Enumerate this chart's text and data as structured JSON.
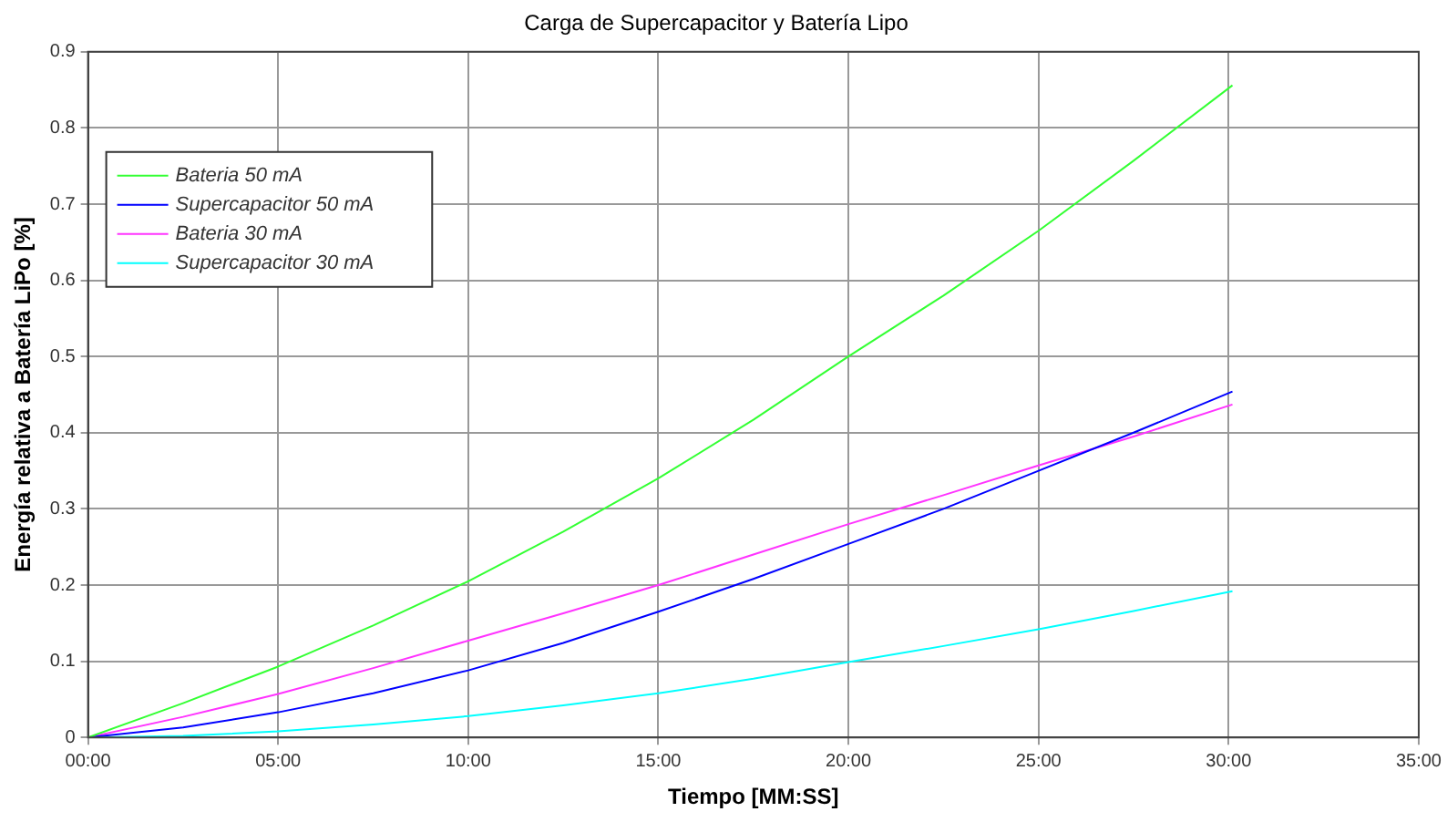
{
  "chart_data": {
    "type": "line",
    "title": "Carga de Supercapacitor y Batería Lipo",
    "xlabel": "Tiempo [MM:SS]",
    "ylabel": "Energía relativa a Batería LiPo [%]",
    "x": [
      0,
      2.5,
      5,
      7.5,
      10,
      12.5,
      15,
      17.5,
      20,
      22.5,
      25,
      27.5,
      30.1
    ],
    "series": [
      {
        "name": "Bateria 50 mA",
        "color": "#33ff33",
        "values": [
          0,
          0.045,
          0.093,
          0.147,
          0.205,
          0.27,
          0.34,
          0.417,
          0.5,
          0.58,
          0.665,
          0.757,
          0.856
        ]
      },
      {
        "name": "Supercapacitor 50 mA",
        "color": "#0000ff",
        "values": [
          0,
          0.013,
          0.033,
          0.058,
          0.088,
          0.124,
          0.165,
          0.208,
          0.254,
          0.3,
          0.35,
          0.4,
          0.454
        ]
      },
      {
        "name": "Bateria 30 mA",
        "color": "#ff33ff",
        "values": [
          0,
          0.027,
          0.057,
          0.091,
          0.127,
          0.163,
          0.2,
          0.24,
          0.28,
          0.318,
          0.357,
          0.395,
          0.437
        ]
      },
      {
        "name": "Supercapacitor 30 mA",
        "color": "#00ffff",
        "values": [
          0,
          0.002,
          0.008,
          0.017,
          0.028,
          0.042,
          0.058,
          0.077,
          0.099,
          0.12,
          0.142,
          0.166,
          0.192
        ]
      }
    ],
    "xlim": [
      0,
      35
    ],
    "xticks": [
      {
        "value": 0,
        "label": "00:00"
      },
      {
        "value": 5,
        "label": "05:00"
      },
      {
        "value": 10,
        "label": "10:00"
      },
      {
        "value": 15,
        "label": "15:00"
      },
      {
        "value": 20,
        "label": "20:00"
      },
      {
        "value": 25,
        "label": "25:00"
      },
      {
        "value": 30,
        "label": "30:00"
      },
      {
        "value": 35,
        "label": "35:00"
      }
    ],
    "ylim": [
      0,
      0.9
    ],
    "yticks": [
      0,
      0.1,
      0.2,
      0.3,
      0.4,
      0.5,
      0.6,
      0.7,
      0.8,
      0.9
    ],
    "grid": true,
    "legend": "top left",
    "marker": "none",
    "line_style": "solid"
  }
}
